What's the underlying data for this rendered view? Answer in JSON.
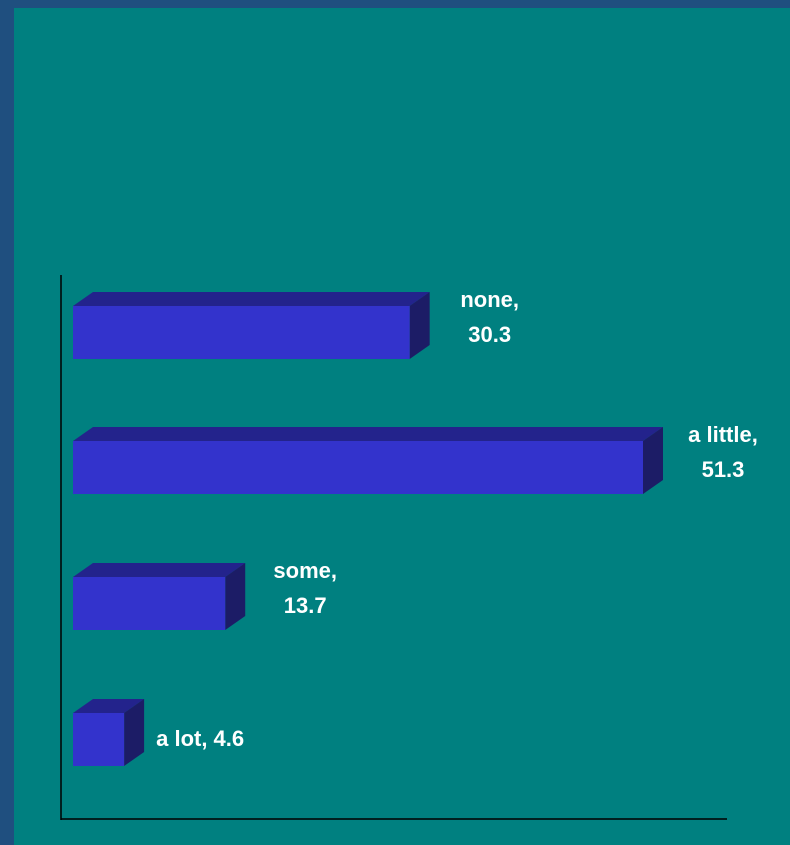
{
  "colors": {
    "page_border": "#1f4f7f",
    "plot_background": "#008080",
    "bar_front": "#3333cc",
    "bar_top": "#23238c",
    "bar_side": "#1c1c66",
    "axis": "#000000",
    "label": "#ffffff"
  },
  "chart_data": {
    "type": "bar",
    "orientation": "horizontal",
    "style": "3d",
    "categories": [
      "none",
      "a little",
      "some",
      "a lot"
    ],
    "values": [
      30.3,
      51.3,
      13.7,
      4.6
    ],
    "labels": [
      {
        "name": "none,",
        "value": "30.3"
      },
      {
        "name": "a little,",
        "value": "51.3"
      },
      {
        "name": "some,",
        "value": "13.7"
      },
      {
        "name": "a lot, 4.6",
        "value": ""
      }
    ],
    "xlim": [
      0,
      51.3
    ],
    "grid": false,
    "legend": "none"
  }
}
